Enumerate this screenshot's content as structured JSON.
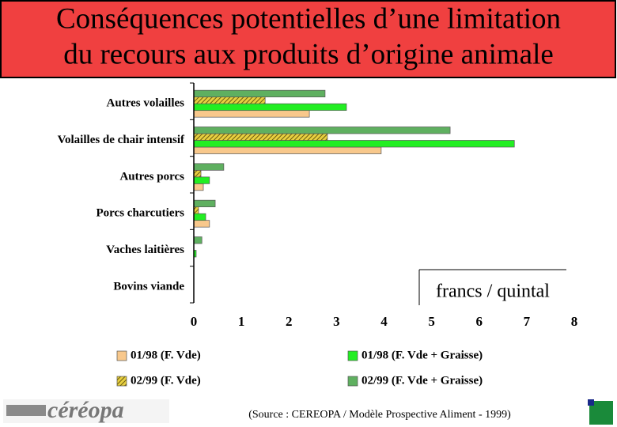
{
  "chart_data": {
    "type": "hbar",
    "title": [
      "Conséquences potentielles d’une limitation",
      "du recours aux produits d’origine animale"
    ],
    "categories": [
      "Autres volailles",
      "Volailles de chair intensif",
      "Autres porcs",
      "Porcs charcutiers",
      "Vaches laitières",
      "Bovins viande"
    ],
    "series": [
      {
        "name": "01/98 (F. Vde)",
        "color": "#f8c88c",
        "hatch": false,
        "values": [
          2.43,
          3.94,
          0.2,
          0.33,
          0,
          0
        ]
      },
      {
        "name": "01/98 (F. Vde + Graisse)",
        "color": "#22ee22",
        "hatch": false,
        "values": [
          3.21,
          6.74,
          0.33,
          0.25,
          0.05,
          0
        ]
      },
      {
        "name": "02/99 (F. Vde)",
        "color": "#b8a830",
        "hatch": true,
        "values": [
          1.5,
          2.81,
          0.15,
          0.1,
          0,
          0
        ]
      },
      {
        "name": "02/99 (F. Vde + Graisse)",
        "color": "#5fb060",
        "hatch": false,
        "values": [
          2.76,
          5.39,
          0.63,
          0.45,
          0.17,
          0
        ]
      }
    ],
    "xlim": [
      0,
      8
    ],
    "xticks": [
      0,
      1,
      2,
      3,
      4,
      5,
      6,
      7,
      8
    ],
    "annotation": "francs / quintal",
    "source": "(Source : CEREOPA / Modèle Prospective Aliment - 1999)",
    "logo_text": "céréopa"
  }
}
